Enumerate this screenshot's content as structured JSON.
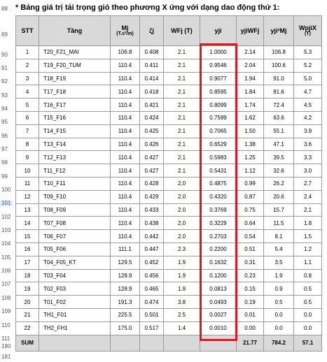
{
  "title": "* Bảng giá trị tải trọng gió theo phương X ứng với dạng dao động thứ 1:",
  "row_numbers": [
    "88",
    "89",
    "90",
    "91",
    "92",
    "93",
    "94",
    "95",
    "96",
    "97",
    "98",
    "99",
    "100",
    "101",
    "102",
    "103",
    "104",
    "105",
    "106",
    "107",
    "108",
    "109",
    "110",
    "111",
    "180",
    "181"
  ],
  "active_row": "101",
  "headers": {
    "stt": "STT",
    "tang": "Tầng",
    "mj": "Mj",
    "mj_unit": "(T.s²/m)",
    "zeta": "ζj",
    "wfj": "WFj (T)",
    "yji": "yji",
    "yjiwfj": "yjiWFj",
    "yji2mj": "yji²Mj",
    "wpjix": "WpjiX",
    "wpjix_unit": "(T)"
  },
  "rows": [
    {
      "stt": "1",
      "tang": "T20_F21_MAI",
      "mj": "106.8",
      "zeta": "0.408",
      "wfj": "2.1",
      "yji": "1.0000",
      "yw": "2.14",
      "y2m": "106.8",
      "wp": "5.3"
    },
    {
      "stt": "2",
      "tang": "T19_F20_TUM",
      "mj": "110.4",
      "zeta": "0.411",
      "wfj": "2.1",
      "yji": "0.9546",
      "yw": "2.04",
      "y2m": "100.6",
      "wp": "5.2"
    },
    {
      "stt": "3",
      "tang": "T18_F19",
      "mj": "110.4",
      "zeta": "0.414",
      "wfj": "2.1",
      "yji": "0.9077",
      "yw": "1.94",
      "y2m": "91.0",
      "wp": "5.0"
    },
    {
      "stt": "4",
      "tang": "T17_F18",
      "mj": "110.4",
      "zeta": "0.418",
      "wfj": "2.1",
      "yji": "0.8595",
      "yw": "1.84",
      "y2m": "81.6",
      "wp": "4.7"
    },
    {
      "stt": "5",
      "tang": "T16_F17",
      "mj": "110.4",
      "zeta": "0.421",
      "wfj": "2.1",
      "yji": "0.8099",
      "yw": "1.74",
      "y2m": "72.4",
      "wp": "4.5"
    },
    {
      "stt": "6",
      "tang": "T15_F16",
      "mj": "110.4",
      "zeta": "0.424",
      "wfj": "2.1",
      "yji": "0.7589",
      "yw": "1.62",
      "y2m": "63.6",
      "wp": "4.2"
    },
    {
      "stt": "7",
      "tang": "T14_F15",
      "mj": "110.4",
      "zeta": "0.425",
      "wfj": "2.1",
      "yji": "0.7065",
      "yw": "1.50",
      "y2m": "55.1",
      "wp": "3.9"
    },
    {
      "stt": "8",
      "tang": "T13_F14",
      "mj": "110.4",
      "zeta": "0.426",
      "wfj": "2.1",
      "yji": "0.6529",
      "yw": "1.38",
      "y2m": "47.1",
      "wp": "3.6"
    },
    {
      "stt": "9",
      "tang": "T12_F13",
      "mj": "110.4",
      "zeta": "0.427",
      "wfj": "2.1",
      "yji": "0.5983",
      "yw": "1.25",
      "y2m": "39.5",
      "wp": "3.3"
    },
    {
      "stt": "10",
      "tang": "T11_F12",
      "mj": "110.4",
      "zeta": "0.427",
      "wfj": "2.1",
      "yji": "0.5431",
      "yw": "1.12",
      "y2m": "32.6",
      "wp": "3.0"
    },
    {
      "stt": "11",
      "tang": "T10_F11",
      "mj": "110.4",
      "zeta": "0.428",
      "wfj": "2.0",
      "yji": "0.4875",
      "yw": "0.99",
      "y2m": "26.2",
      "wp": "2.7"
    },
    {
      "stt": "12",
      "tang": "T09_F10",
      "mj": "110.4",
      "zeta": "0.429",
      "wfj": "2.0",
      "yji": "0.4320",
      "yw": "0.87",
      "y2m": "20.6",
      "wp": "2.4"
    },
    {
      "stt": "13",
      "tang": "T08_F09",
      "mj": "110.4",
      "zeta": "0.433",
      "wfj": "2.0",
      "yji": "0.3769",
      "yw": "0.75",
      "y2m": "15.7",
      "wp": "2.1"
    },
    {
      "stt": "14",
      "tang": "T07_F08",
      "mj": "110.4",
      "zeta": "0.438",
      "wfj": "2.0",
      "yji": "0.3229",
      "yw": "0.64",
      "y2m": "11.5",
      "wp": "1.8"
    },
    {
      "stt": "15",
      "tang": "T06_F07",
      "mj": "110.4",
      "zeta": "0.442",
      "wfj": "2.0",
      "yji": "0.2703",
      "yw": "0.54",
      "y2m": "8.1",
      "wp": "1.5"
    },
    {
      "stt": "16",
      "tang": "T05_F06",
      "mj": "111.1",
      "zeta": "0.447",
      "wfj": "2.3",
      "yji": "0.2200",
      "yw": "0.51",
      "y2m": "5.4",
      "wp": "1.2"
    },
    {
      "stt": "17",
      "tang": "T04_F05_KT",
      "mj": "129.5",
      "zeta": "0.452",
      "wfj": "1.9",
      "yji": "0.1632",
      "yw": "0.31",
      "y2m": "3.5",
      "wp": "1.1"
    },
    {
      "stt": "18",
      "tang": "T03_F04",
      "mj": "128.9",
      "zeta": "0.456",
      "wfj": "1.9",
      "yji": "0.1200",
      "yw": "0.23",
      "y2m": "1.9",
      "wp": "0.8"
    },
    {
      "stt": "19",
      "tang": "T02_F03",
      "mj": "128.9",
      "zeta": "0.465",
      "wfj": "1.9",
      "yji": "0.0813",
      "yw": "0.15",
      "y2m": "0.9",
      "wp": "0.5"
    },
    {
      "stt": "20",
      "tang": "T01_F02",
      "mj": "191.3",
      "zeta": "0.474",
      "wfj": "3.8",
      "yji": "0.0493",
      "yw": "0.19",
      "y2m": "0.5",
      "wp": "0.5"
    },
    {
      "stt": "21",
      "tang": "TH1_F01",
      "mj": "225.5",
      "zeta": "0.501",
      "wfj": "2.5",
      "yji": "0.0027",
      "yw": "0.01",
      "y2m": "0.0",
      "wp": "0.0"
    },
    {
      "stt": "22",
      "tang": "TH2_FH1",
      "mj": "175.0",
      "zeta": "0.517",
      "wfj": "1.4",
      "yji": "0.0010",
      "yw": "0.00",
      "y2m": "0.0",
      "wp": "0.0"
    }
  ],
  "sum": {
    "label": "SUM",
    "yw": "21.77",
    "y2m": "784.2",
    "wp": "57.1"
  },
  "colors": {
    "highlight": "#e8141b",
    "header_bg": "#d9d9d9",
    "grid": "#9a9a9a"
  }
}
